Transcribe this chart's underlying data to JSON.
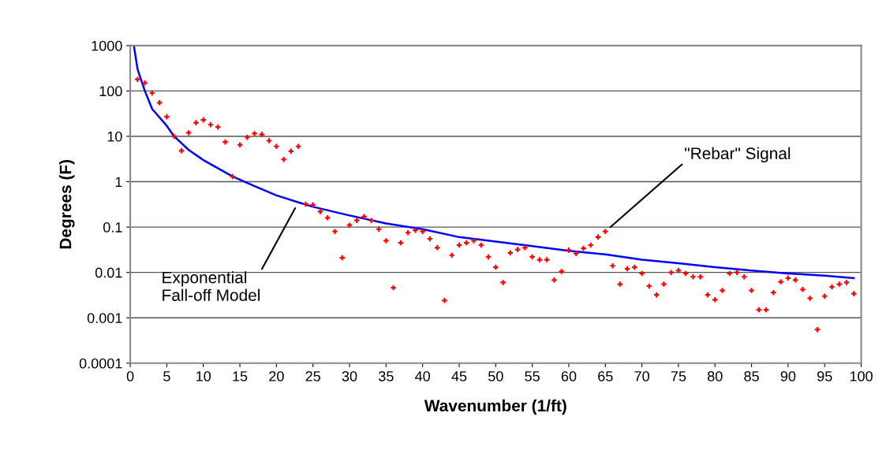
{
  "chart_data": {
    "type": "scatter",
    "xlabel": "Wavenumber (1/ft)",
    "ylabel": "Degrees (F)",
    "log": "y",
    "grid": "y",
    "legend": false,
    "xlim": [
      0,
      100
    ],
    "xticks": [
      0,
      5,
      10,
      15,
      20,
      25,
      30,
      35,
      40,
      45,
      50,
      55,
      60,
      65,
      70,
      75,
      80,
      85,
      90,
      95,
      100
    ],
    "ylim": [
      0.0001,
      1000
    ],
    "yticks": [
      0.0001,
      0.001,
      0.01,
      0.1,
      1,
      10,
      100,
      1000
    ],
    "series": [
      {
        "type": "line",
        "color": "#0000ff",
        "marker": "none",
        "line_style": "solid",
        "x": [
          0.5,
          1,
          2,
          3,
          5,
          6,
          8,
          10,
          14,
          17,
          20,
          23,
          25,
          30,
          35,
          40,
          45,
          50,
          55,
          60,
          65,
          70,
          75,
          80,
          85,
          90,
          95,
          99
        ],
        "values": [
          1000,
          300,
          100,
          40,
          17,
          10,
          5,
          3,
          1.3,
          0.8,
          0.5,
          0.35,
          0.28,
          0.18,
          0.12,
          0.09,
          0.06,
          0.048,
          0.038,
          0.03,
          0.025,
          0.019,
          0.016,
          0.013,
          0.011,
          0.0095,
          0.0085,
          0.0075
        ]
      },
      {
        "color": "#ff0000",
        "marker": "cross",
        "x": [
          1,
          2,
          3,
          4,
          5,
          6,
          7,
          8,
          9,
          10,
          11,
          12,
          13,
          14,
          15,
          16,
          17,
          18,
          19,
          20,
          21,
          22,
          23,
          24,
          25,
          26,
          27,
          28,
          29,
          30,
          31,
          32,
          33,
          34,
          35,
          36,
          37,
          38,
          39,
          40,
          41,
          42,
          43,
          44,
          45,
          46,
          47,
          48,
          49,
          50,
          51,
          52,
          53,
          54,
          55,
          56,
          57,
          58,
          59,
          60,
          61,
          62,
          63,
          64,
          65,
          66,
          67,
          68,
          69,
          70,
          71,
          72,
          73,
          74,
          75,
          76,
          77,
          78,
          79,
          80,
          81,
          82,
          83,
          84,
          85,
          86,
          87,
          88,
          89,
          90,
          91,
          92,
          93,
          94,
          95,
          96,
          97,
          98,
          99
        ],
        "values": [
          180,
          150,
          90,
          55,
          27,
          10,
          4.8,
          12,
          20,
          23,
          18,
          16,
          7.5,
          1.3,
          6.5,
          9.5,
          11.5,
          11,
          8,
          6,
          3.1,
          4.7,
          6,
          0.32,
          0.31,
          0.22,
          0.16,
          0.08,
          0.021,
          0.11,
          0.14,
          0.17,
          0.14,
          0.09,
          0.05,
          0.0046,
          0.045,
          0.075,
          0.085,
          0.08,
          0.055,
          0.035,
          0.0024,
          0.024,
          0.04,
          0.045,
          0.05,
          0.04,
          0.022,
          0.013,
          0.006,
          0.027,
          0.032,
          0.035,
          0.022,
          0.019,
          0.019,
          0.0068,
          0.0105,
          0.031,
          0.026,
          0.034,
          0.04,
          0.06,
          0.08,
          0.014,
          0.0055,
          0.012,
          0.013,
          0.0095,
          0.005,
          0.0032,
          0.0055,
          0.01,
          0.011,
          0.0095,
          0.008,
          0.008,
          0.0032,
          0.0025,
          0.004,
          0.0095,
          0.01,
          0.008,
          0.004,
          0.0015,
          0.0015,
          0.0036,
          0.0062,
          0.0075,
          0.0068,
          0.0042,
          0.0027,
          0.00055,
          0.003,
          0.0048,
          0.0055,
          0.006,
          0.0034
        ]
      }
    ],
    "annotations": [
      {
        "text": "Exponential\nFall-off Model",
        "x": 23,
        "y": 0.35
      },
      {
        "text": "\"Rebar\" Signal",
        "x": 65,
        "y": 0.08
      }
    ]
  }
}
